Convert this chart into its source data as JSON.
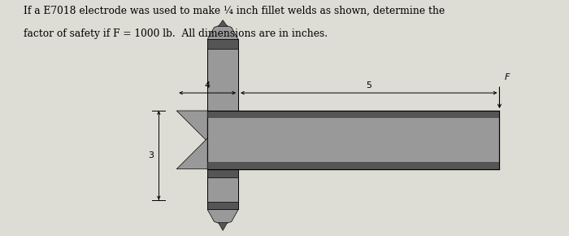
{
  "title_line1": "If a E7018 electrode was used to make ¼ inch fillet welds as shown, determine the",
  "title_line2": "factor of safety if F = 1000 lb.  All dimensions are in inches.",
  "bg_color": "#ddddd5",
  "fill_color": "#999999",
  "dark_fill": "#555555",
  "med_fill": "#888888",
  "F_label": "F",
  "figsize": [
    7.0,
    2.9
  ],
  "dpi": 100
}
